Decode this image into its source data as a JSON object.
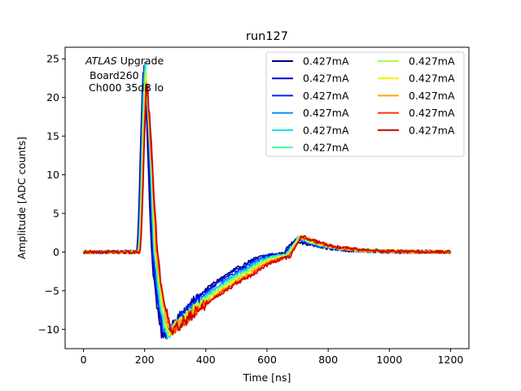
{
  "chart_data": {
    "type": "line",
    "title": "run127",
    "xlabel": "Time [ns]",
    "ylabel": "Amplitude [ADC counts]",
    "xlim": [
      -60,
      1260
    ],
    "ylim": [
      -12.5,
      26.5
    ],
    "xticks": [
      0,
      200,
      400,
      600,
      800,
      1000,
      1200
    ],
    "yticks": [
      -10,
      -5,
      0,
      5,
      10,
      15,
      20,
      25
    ],
    "grid": false,
    "legend_placement": "top-right",
    "legend_columns": 2,
    "annotation": {
      "line1_italic": "ATLAS",
      "line1_rest": " Upgrade",
      "line2": "Board260",
      "line3": "Ch000 35dB lo"
    },
    "series": [
      {
        "name": "0.427mA",
        "color": "#00007f",
        "peak_x": 198,
        "peak_y": 24.0,
        "trough_x": 262,
        "trough_y": -10.9,
        "bump_x": 710,
        "bump_y": 1.6,
        "recovery": 95
      },
      {
        "name": "0.427mA",
        "color": "#0000d0",
        "peak_x": 200,
        "peak_y": 24.5,
        "trough_x": 266,
        "trough_y": -10.7,
        "bump_x": 714,
        "bump_y": 1.7,
        "recovery": 98
      },
      {
        "name": "0.427mA",
        "color": "#0022ff",
        "peak_x": 201,
        "peak_y": 24.8,
        "trough_x": 270,
        "trough_y": -10.5,
        "bump_x": 718,
        "bump_y": 1.8,
        "recovery": 102
      },
      {
        "name": "0.427mA",
        "color": "#0090ff",
        "peak_x": 202,
        "peak_y": 24.6,
        "trough_x": 274,
        "trough_y": -10.6,
        "bump_x": 720,
        "bump_y": 1.9,
        "recovery": 106
      },
      {
        "name": "0.427mA",
        "color": "#0ddcdc",
        "peak_x": 203,
        "peak_y": 24.2,
        "trough_x": 276,
        "trough_y": -10.4,
        "bump_x": 722,
        "bump_y": 2.0,
        "recovery": 110
      },
      {
        "name": "0.427mA",
        "color": "#4effa7",
        "peak_x": 204,
        "peak_y": 23.5,
        "trough_x": 279,
        "trough_y": -10.4,
        "bump_x": 724,
        "bump_y": 2.0,
        "recovery": 114
      },
      {
        "name": "0.427mA",
        "color": "#a7ff4e",
        "peak_x": 205,
        "peak_y": 23.0,
        "trough_x": 282,
        "trough_y": -10.3,
        "bump_x": 726,
        "bump_y": 2.1,
        "recovery": 118
      },
      {
        "name": "0.427mA",
        "color": "#f1f100",
        "peak_x": 206,
        "peak_y": 22.5,
        "trough_x": 285,
        "trough_y": -10.2,
        "bump_x": 728,
        "bump_y": 2.1,
        "recovery": 122
      },
      {
        "name": "0.427mA",
        "color": "#ffa500",
        "peak_x": 207,
        "peak_y": 22.0,
        "trough_x": 288,
        "trough_y": -10.2,
        "bump_x": 730,
        "bump_y": 2.2,
        "recovery": 126
      },
      {
        "name": "0.427mA",
        "color": "#ff3300",
        "peak_x": 208,
        "peak_y": 21.7,
        "trough_x": 291,
        "trough_y": -10.1,
        "bump_x": 732,
        "bump_y": 2.2,
        "recovery": 130
      },
      {
        "name": "0.427mA",
        "color": "#c80000",
        "peak_x": 209,
        "peak_y": 21.5,
        "trough_x": 294,
        "trough_y": -10.0,
        "bump_x": 734,
        "bump_y": 2.3,
        "recovery": 134
      }
    ]
  }
}
